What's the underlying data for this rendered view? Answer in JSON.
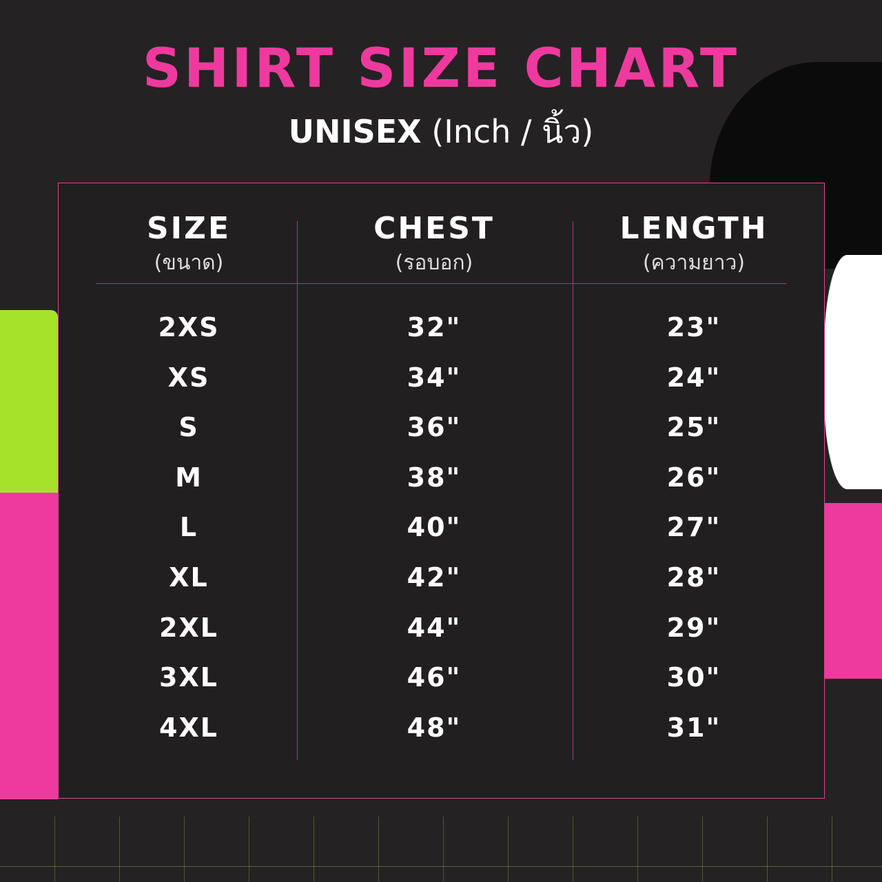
{
  "title": "SHIRT SIZE CHART",
  "subtitle": {
    "main": "UNISEX",
    "rest": "(Inch / นิ้ว)"
  },
  "colors": {
    "accent": "#ee3a9e",
    "lime": "#a6e22a",
    "background": "#242223"
  },
  "table": {
    "columns": [
      {
        "label": "SIZE",
        "sub": "(ขนาด)"
      },
      {
        "label": "CHEST",
        "sub": "(รอบอก)"
      },
      {
        "label": "LENGTH",
        "sub": "(ความยาว)"
      }
    ],
    "rows": [
      [
        "2XS",
        "32\"",
        "23\""
      ],
      [
        "XS",
        "34\"",
        "24\""
      ],
      [
        "S",
        "36\"",
        "25\""
      ],
      [
        "M",
        "38\"",
        "26\""
      ],
      [
        "L",
        "40\"",
        "27\""
      ],
      [
        "XL",
        "42\"",
        "28\""
      ],
      [
        "2XL",
        "44\"",
        "29\""
      ],
      [
        "3XL",
        "46\"",
        "30\""
      ],
      [
        "4XL",
        "48\"",
        "31\""
      ]
    ]
  }
}
